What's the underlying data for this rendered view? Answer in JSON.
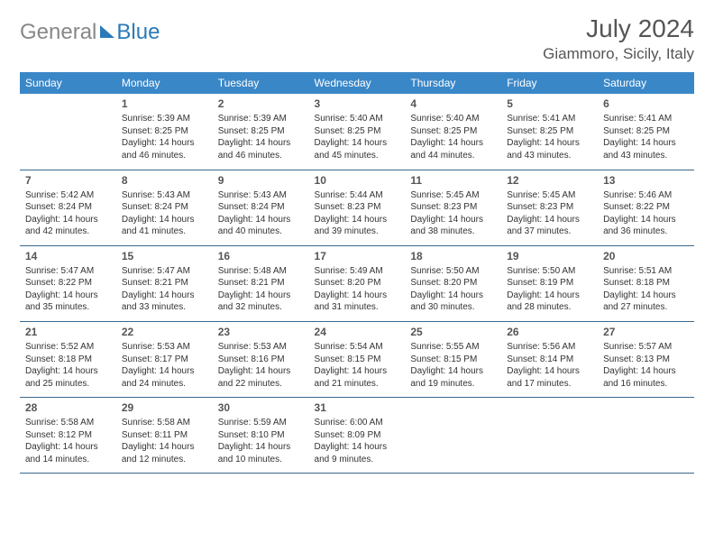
{
  "brand": {
    "general": "General",
    "blue": "Blue"
  },
  "title": "July 2024",
  "location": "Giammoro, Sicily, Italy",
  "colors": {
    "header_bg": "#3a87c8",
    "header_fg": "#ffffff",
    "row_border": "#3a6a8f",
    "logo_gray": "#888888",
    "logo_blue": "#2a7ab9",
    "text": "#333333",
    "title_color": "#555555"
  },
  "weekdays": [
    "Sunday",
    "Monday",
    "Tuesday",
    "Wednesday",
    "Thursday",
    "Friday",
    "Saturday"
  ],
  "weeks": [
    [
      null,
      {
        "day": "1",
        "sunrise": "Sunrise: 5:39 AM",
        "sunset": "Sunset: 8:25 PM",
        "daylight": "Daylight: 14 hours and 46 minutes."
      },
      {
        "day": "2",
        "sunrise": "Sunrise: 5:39 AM",
        "sunset": "Sunset: 8:25 PM",
        "daylight": "Daylight: 14 hours and 46 minutes."
      },
      {
        "day": "3",
        "sunrise": "Sunrise: 5:40 AM",
        "sunset": "Sunset: 8:25 PM",
        "daylight": "Daylight: 14 hours and 45 minutes."
      },
      {
        "day": "4",
        "sunrise": "Sunrise: 5:40 AM",
        "sunset": "Sunset: 8:25 PM",
        "daylight": "Daylight: 14 hours and 44 minutes."
      },
      {
        "day": "5",
        "sunrise": "Sunrise: 5:41 AM",
        "sunset": "Sunset: 8:25 PM",
        "daylight": "Daylight: 14 hours and 43 minutes."
      },
      {
        "day": "6",
        "sunrise": "Sunrise: 5:41 AM",
        "sunset": "Sunset: 8:25 PM",
        "daylight": "Daylight: 14 hours and 43 minutes."
      }
    ],
    [
      {
        "day": "7",
        "sunrise": "Sunrise: 5:42 AM",
        "sunset": "Sunset: 8:24 PM",
        "daylight": "Daylight: 14 hours and 42 minutes."
      },
      {
        "day": "8",
        "sunrise": "Sunrise: 5:43 AM",
        "sunset": "Sunset: 8:24 PM",
        "daylight": "Daylight: 14 hours and 41 minutes."
      },
      {
        "day": "9",
        "sunrise": "Sunrise: 5:43 AM",
        "sunset": "Sunset: 8:24 PM",
        "daylight": "Daylight: 14 hours and 40 minutes."
      },
      {
        "day": "10",
        "sunrise": "Sunrise: 5:44 AM",
        "sunset": "Sunset: 8:23 PM",
        "daylight": "Daylight: 14 hours and 39 minutes."
      },
      {
        "day": "11",
        "sunrise": "Sunrise: 5:45 AM",
        "sunset": "Sunset: 8:23 PM",
        "daylight": "Daylight: 14 hours and 38 minutes."
      },
      {
        "day": "12",
        "sunrise": "Sunrise: 5:45 AM",
        "sunset": "Sunset: 8:23 PM",
        "daylight": "Daylight: 14 hours and 37 minutes."
      },
      {
        "day": "13",
        "sunrise": "Sunrise: 5:46 AM",
        "sunset": "Sunset: 8:22 PM",
        "daylight": "Daylight: 14 hours and 36 minutes."
      }
    ],
    [
      {
        "day": "14",
        "sunrise": "Sunrise: 5:47 AM",
        "sunset": "Sunset: 8:22 PM",
        "daylight": "Daylight: 14 hours and 35 minutes."
      },
      {
        "day": "15",
        "sunrise": "Sunrise: 5:47 AM",
        "sunset": "Sunset: 8:21 PM",
        "daylight": "Daylight: 14 hours and 33 minutes."
      },
      {
        "day": "16",
        "sunrise": "Sunrise: 5:48 AM",
        "sunset": "Sunset: 8:21 PM",
        "daylight": "Daylight: 14 hours and 32 minutes."
      },
      {
        "day": "17",
        "sunrise": "Sunrise: 5:49 AM",
        "sunset": "Sunset: 8:20 PM",
        "daylight": "Daylight: 14 hours and 31 minutes."
      },
      {
        "day": "18",
        "sunrise": "Sunrise: 5:50 AM",
        "sunset": "Sunset: 8:20 PM",
        "daylight": "Daylight: 14 hours and 30 minutes."
      },
      {
        "day": "19",
        "sunrise": "Sunrise: 5:50 AM",
        "sunset": "Sunset: 8:19 PM",
        "daylight": "Daylight: 14 hours and 28 minutes."
      },
      {
        "day": "20",
        "sunrise": "Sunrise: 5:51 AM",
        "sunset": "Sunset: 8:18 PM",
        "daylight": "Daylight: 14 hours and 27 minutes."
      }
    ],
    [
      {
        "day": "21",
        "sunrise": "Sunrise: 5:52 AM",
        "sunset": "Sunset: 8:18 PM",
        "daylight": "Daylight: 14 hours and 25 minutes."
      },
      {
        "day": "22",
        "sunrise": "Sunrise: 5:53 AM",
        "sunset": "Sunset: 8:17 PM",
        "daylight": "Daylight: 14 hours and 24 minutes."
      },
      {
        "day": "23",
        "sunrise": "Sunrise: 5:53 AM",
        "sunset": "Sunset: 8:16 PM",
        "daylight": "Daylight: 14 hours and 22 minutes."
      },
      {
        "day": "24",
        "sunrise": "Sunrise: 5:54 AM",
        "sunset": "Sunset: 8:15 PM",
        "daylight": "Daylight: 14 hours and 21 minutes."
      },
      {
        "day": "25",
        "sunrise": "Sunrise: 5:55 AM",
        "sunset": "Sunset: 8:15 PM",
        "daylight": "Daylight: 14 hours and 19 minutes."
      },
      {
        "day": "26",
        "sunrise": "Sunrise: 5:56 AM",
        "sunset": "Sunset: 8:14 PM",
        "daylight": "Daylight: 14 hours and 17 minutes."
      },
      {
        "day": "27",
        "sunrise": "Sunrise: 5:57 AM",
        "sunset": "Sunset: 8:13 PM",
        "daylight": "Daylight: 14 hours and 16 minutes."
      }
    ],
    [
      {
        "day": "28",
        "sunrise": "Sunrise: 5:58 AM",
        "sunset": "Sunset: 8:12 PM",
        "daylight": "Daylight: 14 hours and 14 minutes."
      },
      {
        "day": "29",
        "sunrise": "Sunrise: 5:58 AM",
        "sunset": "Sunset: 8:11 PM",
        "daylight": "Daylight: 14 hours and 12 minutes."
      },
      {
        "day": "30",
        "sunrise": "Sunrise: 5:59 AM",
        "sunset": "Sunset: 8:10 PM",
        "daylight": "Daylight: 14 hours and 10 minutes."
      },
      {
        "day": "31",
        "sunrise": "Sunrise: 6:00 AM",
        "sunset": "Sunset: 8:09 PM",
        "daylight": "Daylight: 14 hours and 9 minutes."
      },
      null,
      null,
      null
    ]
  ]
}
